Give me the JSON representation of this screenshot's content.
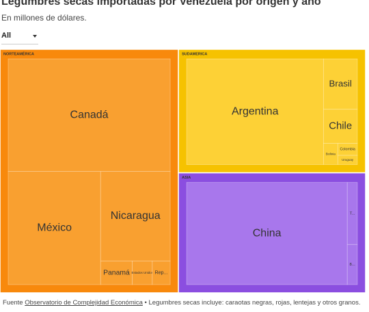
{
  "header": {
    "title": "Legumbres secas importadas por Venezuela por origen y año",
    "subtitle": "En millones de dólares."
  },
  "filter": {
    "value": "All"
  },
  "chart_data": {
    "type": "treemap",
    "groups": [
      {
        "name": "NORTEAMÉRICA",
        "color": "#f8890c",
        "leaf_color": "#f9a030",
        "children": [
          {
            "name": "Canadá",
            "value": 36.6
          },
          {
            "name": "México",
            "value": 21.0
          },
          {
            "name": "Nicaragua",
            "value": 12.5
          },
          {
            "name": "Panamá",
            "value": 1.5
          },
          {
            "name": "Estados Unidos",
            "value": 0.95
          },
          {
            "name": "Rep...",
            "value": 0.85
          }
        ]
      },
      {
        "name": "SUDAMERICA",
        "color": "#f6c200",
        "leaf_color": "#fdd136",
        "children": [
          {
            "name": "Argentina",
            "value": 31.3
          },
          {
            "name": "Brasil",
            "value": 3.7
          },
          {
            "name": "Chile",
            "value": 2.5
          },
          {
            "name": "Bolivia",
            "value": 0.66
          },
          {
            "name": "Colombia",
            "value": 0.51
          },
          {
            "name": "Uruguay",
            "value": 0.39
          }
        ]
      },
      {
        "name": "ASIA",
        "color": "#8b4ee0",
        "leaf_color": "#a877ec",
        "children": [
          {
            "name": "China",
            "value": 35.7
          },
          {
            "name": "T...",
            "value": 1.36
          },
          {
            "name": "8...",
            "value": 0.88
          }
        ]
      }
    ]
  },
  "footer": {
    "prefix": "Fuente",
    "link": "Observatorio de Complejidad Económica",
    "note": "• Legumbres secas incluye: caraotas negras, rojas, lentejas y otros granos."
  }
}
